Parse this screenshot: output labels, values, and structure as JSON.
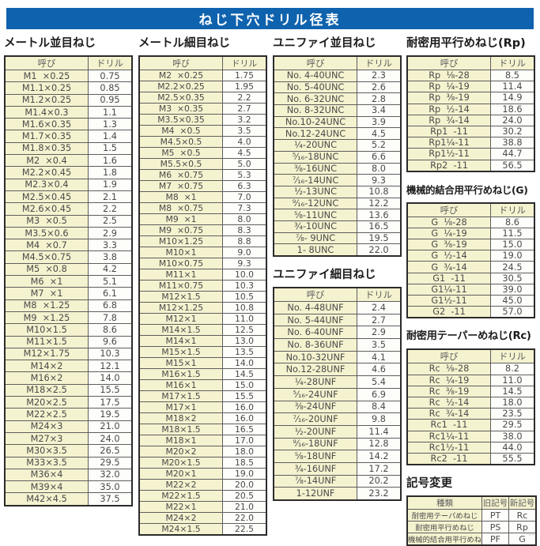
{
  "title": "ねじ下穴ドリル径表",
  "corner_mark": "--",
  "headers": {
    "name": "呼び",
    "drill": "ドリル"
  },
  "sections": {
    "metric_coarse": {
      "heading": "メートル並目ねじ",
      "rows": [
        [
          "M1  ×0.25",
          "0.75"
        ],
        [
          "M1.1×0.25",
          "0.85"
        ],
        [
          "M1.2×0.25",
          "0.95"
        ],
        [
          "M1.4×0.3",
          "1.1"
        ],
        [
          "M1.6×0.35",
          "1.3"
        ],
        [
          "M1.7×0.35",
          "1.4"
        ],
        [
          "M1.8×0.35",
          "1.5"
        ],
        [
          "M2  ×0.4",
          "1.6"
        ],
        [
          "M2.2×0.45",
          "1.8"
        ],
        [
          "M2.3×0.4",
          "1.9"
        ],
        [
          "M2.5×0.45",
          "2.1"
        ],
        [
          "M2.6×0.45",
          "2.2"
        ],
        [
          "M3  ×0.5",
          "2.5"
        ],
        [
          "M3.5×0.6",
          "2.9"
        ],
        [
          "M4  ×0.7",
          "3.3"
        ],
        [
          "M4.5×0.75",
          "3.8"
        ],
        [
          "M5  ×0.8",
          "4.2"
        ],
        [
          "M6  ×1",
          "5.1"
        ],
        [
          "M7  ×1",
          "6.1"
        ],
        [
          "M8  ×1.25",
          "6.8"
        ],
        [
          "M9  ×1.25",
          "7.8"
        ],
        [
          "M10×1.5",
          "8.6"
        ],
        [
          "M11×1.5",
          "9.6"
        ],
        [
          "M12×1.75",
          "10.3"
        ],
        [
          "M14×2",
          "12.1"
        ],
        [
          "M16×2",
          "14.0"
        ],
        [
          "M18×2.5",
          "15.5"
        ],
        [
          "M20×2.5",
          "17.5"
        ],
        [
          "M22×2.5",
          "19.5"
        ],
        [
          "M24×3",
          "21.0"
        ],
        [
          "M27×3",
          "24.0"
        ],
        [
          "M30×3.5",
          "26.5"
        ],
        [
          "M33×3.5",
          "29.5"
        ],
        [
          "M36×4",
          "32.0"
        ],
        [
          "M39×4",
          "35.0"
        ],
        [
          "M42×4.5",
          "37.5"
        ]
      ]
    },
    "metric_fine": {
      "heading": "メートル細目ねじ",
      "rows": [
        [
          "M2  ×0.25",
          "1.75"
        ],
        [
          "M2.2×0.25",
          "1.95"
        ],
        [
          "M2.5×0.35",
          "2.2"
        ],
        [
          "M3  ×0.35",
          "2.7"
        ],
        [
          "M3.5×0.35",
          "3.2"
        ],
        [
          "M4  ×0.5",
          "3.5"
        ],
        [
          "M4.5×0.5",
          "4.0"
        ],
        [
          "M5  ×0.5",
          "4.5"
        ],
        [
          "M5.5×0.5",
          "5.0"
        ],
        [
          "M6  ×0.75",
          "5.3"
        ],
        [
          "M7  ×0.75",
          "6.3"
        ],
        [
          "M8  ×1",
          "7.0"
        ],
        [
          "M8  ×0.75",
          "7.3"
        ],
        [
          "M9  ×1",
          "8.0"
        ],
        [
          "M9  ×0.75",
          "8.3"
        ],
        [
          "M10×1.25",
          "8.8"
        ],
        [
          "M10×1",
          "9.0"
        ],
        [
          "M10×0.75",
          "9.3"
        ],
        [
          "M11×1",
          "10.0"
        ],
        [
          "M11×0.75",
          "10.3"
        ],
        [
          "M12×1.5",
          "10.5"
        ],
        [
          "M12×1.25",
          "10.8"
        ],
        [
          "M12×1",
          "11.0"
        ],
        [
          "M14×1.5",
          "12.5"
        ],
        [
          "M14×1",
          "13.0"
        ],
        [
          "M15×1.5",
          "13.5"
        ],
        [
          "M15×1",
          "14.0"
        ],
        [
          "M16×1.5",
          "14.5"
        ],
        [
          "M16×1",
          "15.0"
        ],
        [
          "M17×1.5",
          "15.5"
        ],
        [
          "M17×1",
          "16.0"
        ],
        [
          "M18×2",
          "16.0"
        ],
        [
          "M18×1.5",
          "16.5"
        ],
        [
          "M18×1",
          "17.0"
        ],
        [
          "M20×2",
          "18.0"
        ],
        [
          "M20×1.5",
          "18.5"
        ],
        [
          "M20×1",
          "19.0"
        ],
        [
          "M22×2",
          "20.0"
        ],
        [
          "M22×1.5",
          "20.5"
        ],
        [
          "M22×1",
          "21.0"
        ],
        [
          "M24×2",
          "22.0"
        ],
        [
          "M24×1.5",
          "22.5"
        ]
      ]
    },
    "unified_coarse": {
      "heading": "ユニファイ並目ねじ",
      "rows": [
        [
          "No. 4-40UNC",
          "2.3"
        ],
        [
          "No. 5-40UNC",
          "2.6"
        ],
        [
          "No. 6-32UNC",
          "2.8"
        ],
        [
          "No. 8-32UNC",
          "3.4"
        ],
        [
          "No.10-24UNC",
          "3.9"
        ],
        [
          "No.12-24UNC",
          "4.5"
        ],
        [
          "¼-20UNC",
          "5.2"
        ],
        [
          "⁵⁄₁₆-18UNC",
          "6.6"
        ],
        [
          "⅜-16UNC",
          "8.0"
        ],
        [
          "⁷⁄₁₆-14UNC",
          "9.3"
        ],
        [
          "½-13UNC",
          "10.8"
        ],
        [
          "⁹⁄₁₆-12UNC",
          "12.2"
        ],
        [
          "⅝-11UNC",
          "13.6"
        ],
        [
          "¾-10UNC",
          "16.5"
        ],
        [
          "⅞- 9UNC",
          "19.5"
        ],
        [
          "1- 8UNC",
          "22.0"
        ]
      ]
    },
    "unified_fine": {
      "heading": "ユニファイ細目ねじ",
      "rows": [
        [
          "No. 4-48UNF",
          "2.4"
        ],
        [
          "No. 5-44UNF",
          "2.7"
        ],
        [
          "No. 6-40UNF",
          "2.9"
        ],
        [
          "No. 8-36UNF",
          "3.5"
        ],
        [
          "No.10-32UNF",
          "4.1"
        ],
        [
          "No.12-28UNF",
          "4.6"
        ],
        [
          "¼-28UNF",
          "5.4"
        ],
        [
          "⁵⁄₁₆-24UNF",
          "6.9"
        ],
        [
          "⅜-24UNF",
          "8.4"
        ],
        [
          "⁷⁄₁₆-20UNF",
          "9.8"
        ],
        [
          "½-20UNF",
          "11.4"
        ],
        [
          "⁹⁄₁₆-18UNF",
          "12.8"
        ],
        [
          "⅝-18UNF",
          "14.2"
        ],
        [
          "¾-16UNF",
          "17.2"
        ],
        [
          "⅞-14UNF",
          "20.2"
        ],
        [
          "1-12UNF",
          "23.2"
        ]
      ]
    },
    "rp": {
      "heading": "耐密用平行めねじ(Rp)",
      "rows": [
        [
          "Rp  ⅛-28",
          "8.5"
        ],
        [
          "Rp  ¼-19",
          "11.4"
        ],
        [
          "Rp  ⅜-19",
          "14.9"
        ],
        [
          "Rp  ½-14",
          "18.6"
        ],
        [
          "Rp  ¾-14",
          "24.0"
        ],
        [
          "Rp1  -11",
          "30.2"
        ],
        [
          "Rp1¼-11",
          "38.8"
        ],
        [
          "Rp1½-11",
          "44.7"
        ],
        [
          "Rp2  -11",
          "56.5"
        ]
      ]
    },
    "g": {
      "heading": "機械的結合用平行めねじ(G)",
      "rows": [
        [
          "G  ⅛-28",
          "8.6"
        ],
        [
          "G  ¼-19",
          "11.5"
        ],
        [
          "G  ⅜-19",
          "15.0"
        ],
        [
          "G  ½-14",
          "19.0"
        ],
        [
          "G  ¾-14",
          "24.5"
        ],
        [
          "G1  -11",
          "30.5"
        ],
        [
          "G1¼-11",
          "39.0"
        ],
        [
          "G1½-11",
          "45.0"
        ],
        [
          "G2  -11",
          "57.0"
        ]
      ]
    },
    "rc": {
      "heading": "耐密用テーパーめねじ(Rc)",
      "rows": [
        [
          "Rc  ⅛-28",
          "8.2"
        ],
        [
          "Rc  ¼-19",
          "11.0"
        ],
        [
          "Rc  ⅜-19",
          "14.5"
        ],
        [
          "Rc  ½-14",
          "18.0"
        ],
        [
          "Rc  ¾-14",
          "23.5"
        ],
        [
          "Rc1  -11",
          "29.5"
        ],
        [
          "Rc1¼-11",
          "38.0"
        ],
        [
          "Rc1½-11",
          "44.0"
        ],
        [
          "Rc2  -11",
          "55.5"
        ]
      ]
    },
    "symbol_change": {
      "heading": "記号変更",
      "headers": [
        "種類",
        "旧記号",
        "新記号"
      ],
      "rows": [
        [
          "耐密用テーパめねじ",
          "PT",
          "Rc"
        ],
        [
          "耐密用平行めねじ",
          "PS",
          "Rp"
        ],
        [
          "機械的結合用平行めねじ",
          "PF",
          "G"
        ]
      ]
    }
  },
  "colors": {
    "title_bar_blue": "#0f62ad",
    "cell_cream": "#f5f2cf",
    "cell_white": "#fdfdfa",
    "border_dark": "#2b2b2b"
  }
}
